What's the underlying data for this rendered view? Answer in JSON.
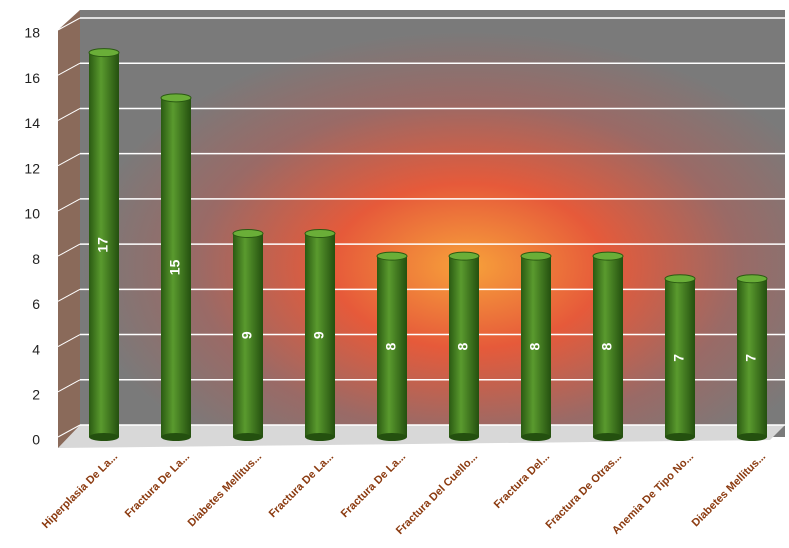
{
  "chart_data": {
    "type": "bar",
    "categories": [
      "Hiperplasia De La...",
      "Fractura De La...",
      "Diabetes Mellitus...",
      "Fractura De La...",
      "Fractura De La...",
      "Fractura Del Cuello...",
      "Fractura Del...",
      "Fractura De Otras...",
      "Anemia De Tipo No...",
      "Diabetes Mellitus..."
    ],
    "values": [
      17,
      15,
      9,
      9,
      8,
      8,
      8,
      8,
      7,
      7
    ],
    "color": "#3f7a1f",
    "ylim": [
      0,
      18
    ],
    "yticks": [
      0,
      2,
      4,
      6,
      8,
      10,
      12,
      14,
      16,
      18
    ],
    "grid": true
  }
}
